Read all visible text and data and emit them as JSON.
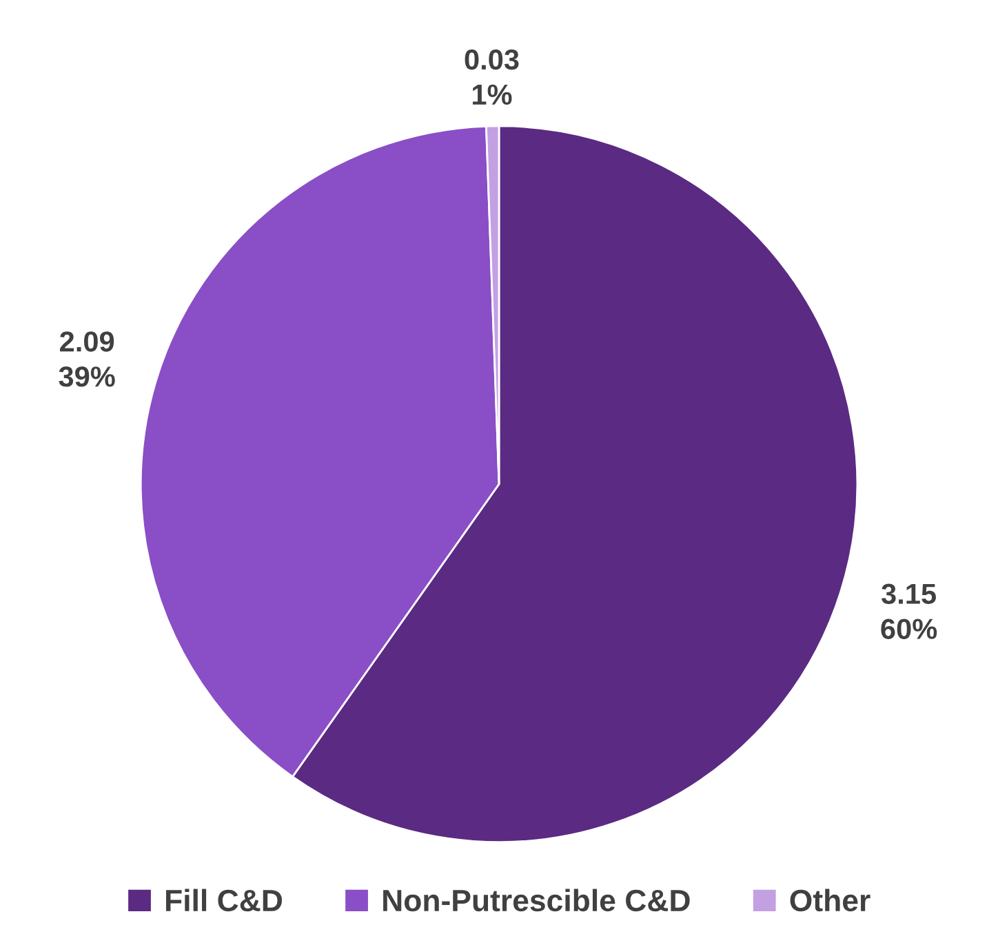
{
  "chart_data": {
    "type": "pie",
    "categories": [
      "Fill C&D",
      "Non-Putrescible C&D",
      "Other"
    ],
    "values": [
      3.15,
      2.09,
      0.03
    ],
    "colors": [
      "#5b2a83",
      "#8a4ec6",
      "#c3a0e2"
    ],
    "value_labels": [
      "3.15\n60%",
      "2.09\n39%",
      "0.03\n1%"
    ],
    "legend": "bottom"
  }
}
